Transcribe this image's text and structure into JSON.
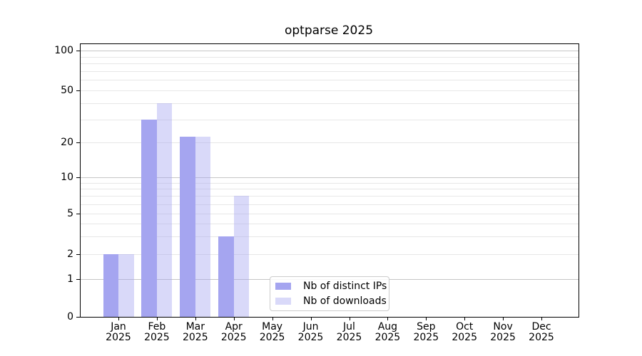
{
  "figure": {
    "title": "optparse 2025"
  },
  "chart_data": {
    "type": "bar",
    "title": "optparse 2025",
    "xlabel": "",
    "ylabel": "",
    "months": [
      "Jan",
      "Feb",
      "Mar",
      "Apr",
      "May",
      "Jun",
      "Jul",
      "Aug",
      "Sep",
      "Oct",
      "Nov",
      "Dec"
    ],
    "year_label": "2025",
    "series": [
      {
        "name": "Nb of distinct IPs",
        "color": "#a5a5f0",
        "values": [
          2,
          30,
          22,
          3,
          0,
          0,
          0,
          0,
          0,
          0,
          0,
          0
        ]
      },
      {
        "name": "Nb of downloads",
        "color": "#dcdcf8",
        "fill": "rgba(165,165,240,0.42)",
        "values": [
          2,
          40,
          22,
          7,
          0,
          0,
          0,
          0,
          0,
          0,
          0,
          0
        ]
      }
    ],
    "yticks": [
      0,
      1,
      2,
      5,
      10,
      20,
      50,
      100
    ],
    "ylim": [
      0,
      115
    ],
    "yscale": "log above 1, linear 0-1",
    "grid": {
      "major_lines": [
        1,
        10,
        100
      ],
      "minor_lines": [
        2,
        3,
        4,
        5,
        6,
        7,
        8,
        9,
        20,
        30,
        40,
        50,
        60,
        70,
        80,
        90
      ],
      "major_color": "#c6c6c6",
      "minor_color": "#e7e7e7"
    },
    "legend": {
      "items": [
        "Nb of distinct IPs",
        "Nb of downloads"
      ],
      "position": "lower center"
    }
  }
}
